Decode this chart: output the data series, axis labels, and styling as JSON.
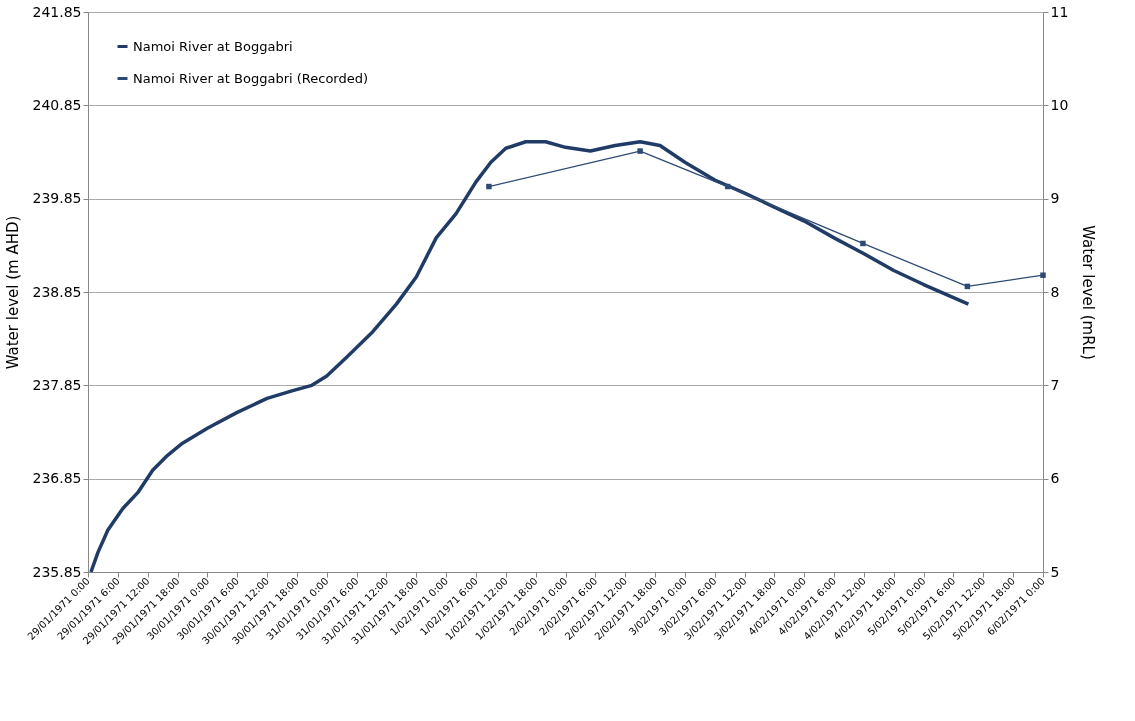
{
  "chart_data": {
    "type": "line",
    "ylabel": "Water level (m AHD)",
    "y2label": "Water level (mRL)",
    "xlim": [
      "1971-01-29T00:00",
      "1971-02-06T00:00"
    ],
    "xticks": [
      {
        "value": "1971-01-29T00:00",
        "label": "29/01/1971 0:00"
      },
      {
        "value": "1971-01-29T06:00",
        "label": "29/01/1971 6:00"
      },
      {
        "value": "1971-01-29T12:00",
        "label": "29/01/1971 12:00"
      },
      {
        "value": "1971-01-29T18:00",
        "label": "29/01/1971 18:00"
      },
      {
        "value": "1971-01-30T00:00",
        "label": "30/01/1971 0:00"
      },
      {
        "value": "1971-01-30T06:00",
        "label": "30/01/1971 6:00"
      },
      {
        "value": "1971-01-30T12:00",
        "label": "30/01/1971 12:00"
      },
      {
        "value": "1971-01-30T18:00",
        "label": "30/01/1971 18:00"
      },
      {
        "value": "1971-01-31T00:00",
        "label": "31/01/1971 0:00"
      },
      {
        "value": "1971-01-31T06:00",
        "label": "31/01/1971 6:00"
      },
      {
        "value": "1971-01-31T12:00",
        "label": "31/01/1971 12:00"
      },
      {
        "value": "1971-01-31T18:00",
        "label": "31/01/1971 18:00"
      },
      {
        "value": "1971-02-01T00:00",
        "label": "1/02/1971 0:00"
      },
      {
        "value": "1971-02-01T06:00",
        "label": "1/02/1971 6:00"
      },
      {
        "value": "1971-02-01T12:00",
        "label": "1/02/1971 12:00"
      },
      {
        "value": "1971-02-01T18:00",
        "label": "1/02/1971 18:00"
      },
      {
        "value": "1971-02-02T00:00",
        "label": "2/02/1971 0:00"
      },
      {
        "value": "1971-02-02T06:00",
        "label": "2/02/1971 6:00"
      },
      {
        "value": "1971-02-02T12:00",
        "label": "2/02/1971 12:00"
      },
      {
        "value": "1971-02-02T18:00",
        "label": "2/02/1971 18:00"
      },
      {
        "value": "1971-02-03T00:00",
        "label": "3/02/1971 0:00"
      },
      {
        "value": "1971-02-03T06:00",
        "label": "3/02/1971 6:00"
      },
      {
        "value": "1971-02-03T12:00",
        "label": "3/02/1971 12:00"
      },
      {
        "value": "1971-02-03T18:00",
        "label": "3/02/1971 18:00"
      },
      {
        "value": "1971-02-04T00:00",
        "label": "4/02/1971 0:00"
      },
      {
        "value": "1971-02-04T06:00",
        "label": "4/02/1971 6:00"
      },
      {
        "value": "1971-02-04T12:00",
        "label": "4/02/1971 12:00"
      },
      {
        "value": "1971-02-04T18:00",
        "label": "4/02/1971 18:00"
      },
      {
        "value": "1971-02-05T00:00",
        "label": "5/02/1971 0:00"
      },
      {
        "value": "1971-02-05T06:00",
        "label": "5/02/1971 6:00"
      },
      {
        "value": "1971-02-05T12:00",
        "label": "5/02/1971 12:00"
      },
      {
        "value": "1971-02-05T18:00",
        "label": "5/02/1971 18:00"
      },
      {
        "value": "1971-02-06T00:00",
        "label": "6/02/1971 0:00"
      }
    ],
    "ylim": [
      235.85,
      241.85
    ],
    "yticks": [
      235.85,
      236.85,
      237.85,
      238.85,
      239.85,
      240.85,
      241.85
    ],
    "y2lim": [
      5,
      11
    ],
    "y2ticks": [
      5,
      6,
      7,
      8,
      9,
      10,
      11
    ],
    "grid": "y",
    "legend": "top left",
    "series": [
      {
        "name": "Namoi River at Boggabri",
        "color": "#1f3b66",
        "marker": "none",
        "line_style": "solid",
        "x": [
          "1971-01-29T00:36",
          "1971-01-29T02:00",
          "1971-01-29T04:00",
          "1971-01-29T07:00",
          "1971-01-29T10:00",
          "1971-01-29T13:00",
          "1971-01-29T16:00",
          "1971-01-29T19:00",
          "1971-01-30T00:00",
          "1971-01-30T06:00",
          "1971-01-30T12:00",
          "1971-01-30T17:00",
          "1971-01-30T21:00",
          "1971-01-31T00:00",
          "1971-01-31T04:00",
          "1971-01-31T09:00",
          "1971-01-31T14:00",
          "1971-01-31T18:00",
          "1971-01-31T22:00",
          "1971-02-01T02:00",
          "1971-02-01T06:00",
          "1971-02-01T09:00",
          "1971-02-01T12:00",
          "1971-02-01T16:00",
          "1971-02-01T20:00",
          "1971-02-02T00:00",
          "1971-02-02T05:00",
          "1971-02-02T10:00",
          "1971-02-02T15:00",
          "1971-02-02T19:00",
          "1971-02-03T00:00",
          "1971-02-03T06:00",
          "1971-02-03T12:00",
          "1971-02-03T18:00",
          "1971-02-04T00:00",
          "1971-02-04T06:00",
          "1971-02-04T12:00",
          "1971-02-04T18:00",
          "1971-02-05T00:00",
          "1971-02-05T06:00",
          "1971-02-05T09:00"
        ],
        "values": [
          235.85,
          236.06,
          236.3,
          236.53,
          236.7,
          236.94,
          237.1,
          237.23,
          237.39,
          237.56,
          237.71,
          237.79,
          237.85,
          237.95,
          238.15,
          238.41,
          238.72,
          239.01,
          239.43,
          239.69,
          240.03,
          240.24,
          240.39,
          240.46,
          240.46,
          240.4,
          240.36,
          240.42,
          240.46,
          240.42,
          240.24,
          240.05,
          239.91,
          239.76,
          239.61,
          239.43,
          239.26,
          239.08,
          238.93,
          238.79,
          238.72
        ]
      },
      {
        "name": "Namoi River at Boggabri (Recorded)",
        "color": "#2d4a75",
        "marker": "square",
        "line_style": "solid",
        "axis": "y2",
        "x": [
          "1971-02-01T08:36",
          "1971-02-02T15:00",
          "1971-02-03T08:36",
          "1971-02-04T11:48",
          "1971-02-05T08:48",
          "1971-02-06T00:00"
        ],
        "values": [
          9.13,
          9.51,
          9.13,
          8.52,
          8.06,
          8.18
        ]
      }
    ]
  }
}
